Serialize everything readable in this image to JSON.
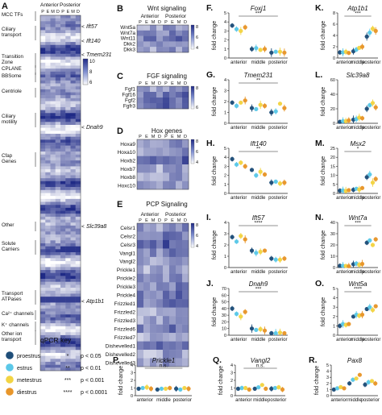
{
  "colors": {
    "proestrus": "#1f4e79",
    "estrus": "#5bc8e8",
    "metestrus": "#f2d443",
    "diestrus": "#e8962a",
    "heat_low": "#ffffff",
    "heat_high": "#1f2a86"
  },
  "stages": [
    "P",
    "E",
    "M",
    "D"
  ],
  "heatmap_A": {
    "letter": "A",
    "col_headers": [
      "Anterior",
      "Posterior"
    ],
    "row_labels": [
      "MCC TFs",
      "Ciliary\ntransport",
      "Transition\nZone",
      "CPLANE",
      "BBSome",
      "Centriole",
      "Ciliary\nmotility",
      "Cfap\nGenes",
      "Other",
      "Solute\nCarriers",
      "Transport\nATPases",
      "Ca²⁺ channels",
      "K⁺ channels",
      "Other ion\ntransport"
    ],
    "gene_callouts": [
      "Ift57",
      "Ift140",
      "Tmem231",
      "Dnah9",
      "Slc39a8",
      "Atp1b1"
    ],
    "scale_ticks": [
      "10",
      "8",
      "6"
    ]
  },
  "panels": {
    "B": {
      "title": "Wnt signaling",
      "cols": [
        "Anterior",
        "Posterior"
      ],
      "rows": [
        "Wnt5a",
        "Wnt7a",
        "Wnt11",
        "Dkk2",
        "Dkk3"
      ],
      "ticks": [
        "8",
        "6",
        "4"
      ]
    },
    "C": {
      "title": "FGF signaling",
      "rows": [
        "Fgf1",
        "Fgf16",
        "Fgf2",
        "Fgfr3"
      ],
      "ticks": [
        "8",
        "6"
      ]
    },
    "D": {
      "title": "Hox genes",
      "rows": [
        "Hoxa9",
        "Hoxa10",
        "Hoxb2",
        "Hoxb7",
        "Hoxb8",
        "Hoxc10"
      ],
      "ticks": [
        "8",
        "6",
        "4"
      ]
    },
    "E": {
      "title": "PCP Signaling",
      "cols": [
        "Anterior",
        "Posterior"
      ],
      "rows": [
        "Celsr1",
        "Celsr2",
        "Celsr3",
        "Vangl1",
        "Vangl2",
        "Prickle1",
        "Prickle2",
        "Prickle3",
        "Prickle4",
        "Frizzled1",
        "Frizzled2",
        "Frizzled3",
        "Frizzled6",
        "Frizzled7",
        "Dishevelled1",
        "Dishevelled2",
        "Dishevelled3"
      ],
      "ticks": [
        "8",
        "6",
        "4"
      ]
    }
  },
  "legend": {
    "title": "qPCR key",
    "items": [
      "proestrus",
      "estrus",
      "metestrus",
      "diestrus"
    ],
    "sig": [
      [
        "*",
        "p < 0.05"
      ],
      [
        "**",
        "p < 0.01"
      ],
      [
        "***",
        "p < 0.001"
      ],
      [
        "****",
        "p < 0.0001"
      ]
    ]
  },
  "chart_data": [
    {
      "type": "scatter",
      "letter": "F",
      "gene": "Foxj1",
      "ylabel": "fold change",
      "categories": [
        "anterior",
        "middle",
        "posterior"
      ],
      "ylim": [
        0,
        5
      ],
      "yticks": [
        0,
        1,
        2,
        3,
        4,
        5
      ],
      "sig": "***",
      "series": [
        {
          "name": "proestrus",
          "values": [
            3.6,
            1.0,
            0.6
          ]
        },
        {
          "name": "estrus",
          "values": [
            3.2,
            1.1,
            0.7
          ]
        },
        {
          "name": "metestrus",
          "values": [
            3.0,
            0.9,
            0.7
          ]
        },
        {
          "name": "diestrus",
          "values": [
            3.4,
            1.0,
            0.6
          ]
        }
      ]
    },
    {
      "type": "scatter",
      "letter": "K",
      "gene": "Atp1b1",
      "ylabel": "fold change",
      "categories": [
        "anterior",
        "middle",
        "posterior"
      ],
      "ylim": [
        0,
        8
      ],
      "yticks": [
        0,
        2,
        4,
        6,
        8
      ],
      "sig": "***",
      "series": [
        {
          "name": "proestrus",
          "values": [
            1.0,
            1.2,
            3.8
          ]
        },
        {
          "name": "estrus",
          "values": [
            1.0,
            1.5,
            4.5
          ]
        },
        {
          "name": "metestrus",
          "values": [
            1.1,
            1.8,
            5.2
          ]
        },
        {
          "name": "diestrus",
          "values": [
            0.9,
            2.0,
            4.8
          ]
        }
      ]
    },
    {
      "type": "scatter",
      "letter": "G",
      "gene": "Tmem231",
      "ylabel": "fold change",
      "categories": [
        "anterior",
        "middle",
        "posterior"
      ],
      "ylim": [
        0,
        4
      ],
      "yticks": [
        0,
        1,
        2,
        3,
        4
      ],
      "sig": "**",
      "series": [
        {
          "name": "proestrus",
          "values": [
            1.9,
            1.4,
            1.0
          ]
        },
        {
          "name": "estrus",
          "values": [
            1.6,
            1.3,
            1.1
          ]
        },
        {
          "name": "metestrus",
          "values": [
            1.9,
            1.7,
            1.8
          ]
        },
        {
          "name": "diestrus",
          "values": [
            2.1,
            1.6,
            1.4
          ]
        }
      ]
    },
    {
      "type": "scatter",
      "letter": "L",
      "gene": "Slc39a8",
      "ylabel": "fold change",
      "categories": [
        "anterior",
        "middle",
        "posterior"
      ],
      "ylim": [
        0,
        60
      ],
      "yticks": [
        0,
        20,
        40,
        60
      ],
      "sig": "",
      "series": [
        {
          "name": "proestrus",
          "values": [
            2,
            5,
            20
          ]
        },
        {
          "name": "estrus",
          "values": [
            3,
            6,
            25
          ]
        },
        {
          "name": "metestrus",
          "values": [
            3,
            8,
            28
          ]
        },
        {
          "name": "diestrus",
          "values": [
            4,
            7,
            22
          ]
        }
      ]
    },
    {
      "type": "scatter",
      "letter": "H",
      "gene": "Ift140",
      "ylabel": "fold change",
      "categories": [
        "anterior",
        "middle",
        "posterior"
      ],
      "ylim": [
        0,
        5
      ],
      "yticks": [
        0,
        1,
        2,
        3,
        4,
        5
      ],
      "sig": "**",
      "series": [
        {
          "name": "proestrus",
          "values": [
            3.8,
            2.6,
            1.2
          ]
        },
        {
          "name": "estrus",
          "values": [
            3.2,
            2.0,
            1.3
          ]
        },
        {
          "name": "metestrus",
          "values": [
            3.4,
            2.4,
            1.1
          ]
        },
        {
          "name": "diestrus",
          "values": [
            3.0,
            2.1,
            1.2
          ]
        }
      ]
    },
    {
      "type": "scatter",
      "letter": "M",
      "gene": "Msx2",
      "ylabel": "fold change",
      "categories": [
        "anterior",
        "middle",
        "posterior"
      ],
      "ylim": [
        0,
        25
      ],
      "yticks": [
        0,
        5,
        10,
        15,
        20,
        25
      ],
      "sig": "*",
      "series": [
        {
          "name": "proestrus",
          "values": [
            1.5,
            2.0,
            9.0
          ]
        },
        {
          "name": "estrus",
          "values": [
            1.6,
            2.6,
            10.5
          ]
        },
        {
          "name": "metestrus",
          "values": [
            1.4,
            2.2,
            6.0
          ]
        },
        {
          "name": "diestrus",
          "values": [
            1.8,
            3.0,
            8.0
          ]
        }
      ]
    },
    {
      "type": "scatter",
      "letter": "I",
      "gene": "Ift57",
      "ylabel": "fold change",
      "categories": [
        "anterior",
        "middle",
        "posterior"
      ],
      "ylim": [
        0,
        4
      ],
      "yticks": [
        0,
        1,
        2,
        3,
        4
      ],
      "sig": "****",
      "series": [
        {
          "name": "proestrus",
          "values": [
            2.7,
            1.5,
            0.8
          ]
        },
        {
          "name": "estrus",
          "values": [
            2.3,
            1.3,
            0.7
          ]
        },
        {
          "name": "metestrus",
          "values": [
            2.8,
            1.4,
            0.7
          ]
        },
        {
          "name": "diestrus",
          "values": [
            2.5,
            1.5,
            0.8
          ]
        }
      ]
    },
    {
      "type": "scatter",
      "letter": "N",
      "gene": "Wnt7a",
      "ylabel": "fold change",
      "categories": [
        "anterior",
        "middle",
        "posterior"
      ],
      "ylim": [
        0,
        40
      ],
      "yticks": [
        0,
        10,
        20,
        30,
        40
      ],
      "sig": "***",
      "series": [
        {
          "name": "proestrus",
          "values": [
            1.5,
            3.0,
            22.0
          ]
        },
        {
          "name": "estrus",
          "values": [
            1.6,
            3.5,
            24.0
          ]
        },
        {
          "name": "metestrus",
          "values": [
            1.4,
            2.5,
            20.0
          ]
        },
        {
          "name": "diestrus",
          "values": [
            1.2,
            3.2,
            25.0
          ]
        }
      ]
    },
    {
      "type": "scatter",
      "letter": "J",
      "gene": "Dnah9",
      "ylabel": "fold change",
      "categories": [
        "anterior",
        "middle",
        "posterior"
      ],
      "ylim": [
        0,
        70
      ],
      "yticks": [
        0,
        10,
        20,
        30,
        40,
        50,
        60,
        70
      ],
      "sig": "***",
      "series": [
        {
          "name": "proestrus",
          "values": [
            40,
            10,
            3
          ]
        },
        {
          "name": "estrus",
          "values": [
            32,
            8,
            3
          ]
        },
        {
          "name": "metestrus",
          "values": [
            28,
            9,
            4
          ]
        },
        {
          "name": "diestrus",
          "values": [
            35,
            7,
            3
          ]
        }
      ]
    },
    {
      "type": "scatter",
      "letter": "O",
      "gene": "Wnt5a",
      "ylabel": "fold change",
      "categories": [
        "anterior",
        "middle",
        "posterior"
      ],
      "ylim": [
        0,
        5
      ],
      "yticks": [
        0,
        1,
        2,
        3,
        4,
        5
      ],
      "sig": "****",
      "series": [
        {
          "name": "proestrus",
          "values": [
            1.0,
            2.0,
            2.8
          ]
        },
        {
          "name": "estrus",
          "values": [
            1.2,
            2.2,
            3.0
          ]
        },
        {
          "name": "metestrus",
          "values": [
            1.1,
            2.1,
            2.7
          ]
        },
        {
          "name": "diestrus",
          "values": [
            1.2,
            2.2,
            3.1
          ]
        }
      ]
    },
    {
      "type": "scatter",
      "letter": "P",
      "gene": "Prickle1",
      "ylabel": "fold change",
      "categories": [
        "anterior",
        "middle",
        "posterior"
      ],
      "ylim": [
        0,
        4
      ],
      "yticks": [
        0,
        1,
        2,
        3,
        4
      ],
      "sig": "n.s.",
      "series": [
        {
          "name": "proestrus",
          "values": [
            0.9,
            0.8,
            0.9
          ]
        },
        {
          "name": "estrus",
          "values": [
            1.0,
            0.9,
            0.8
          ]
        },
        {
          "name": "metestrus",
          "values": [
            1.1,
            0.9,
            1.0
          ]
        },
        {
          "name": "diestrus",
          "values": [
            0.9,
            1.0,
            0.9
          ]
        }
      ]
    },
    {
      "type": "scatter",
      "letter": "Q",
      "gene": "Vangl2",
      "ylabel": "fold change",
      "categories": [
        "anterior",
        "middle",
        "posterior"
      ],
      "ylim": [
        0,
        4
      ],
      "yticks": [
        0,
        1,
        2,
        3,
        4
      ],
      "sig": "n.s.",
      "series": [
        {
          "name": "proestrus",
          "values": [
            0.9,
            0.9,
            0.9
          ]
        },
        {
          "name": "estrus",
          "values": [
            1.0,
            1.1,
            1.0
          ]
        },
        {
          "name": "metestrus",
          "values": [
            1.0,
            1.4,
            1.1
          ]
        },
        {
          "name": "diestrus",
          "values": [
            0.8,
            0.9,
            0.8
          ]
        }
      ]
    },
    {
      "type": "scatter",
      "letter": "R",
      "gene": "Pax8",
      "ylabel": "fold change",
      "categories": [
        "anterior",
        "middle",
        "posterior"
      ],
      "ylim": [
        0,
        5
      ],
      "yticks": [
        0,
        1,
        2,
        3,
        4,
        5
      ],
      "sig": "",
      "series": [
        {
          "name": "proestrus",
          "values": [
            1.0,
            2.0,
            1.8
          ]
        },
        {
          "name": "estrus",
          "values": [
            1.2,
            2.6,
            2.2
          ]
        },
        {
          "name": "metestrus",
          "values": [
            1.4,
            2.8,
            2.4
          ]
        },
        {
          "name": "diestrus",
          "values": [
            1.2,
            3.4,
            2.0
          ]
        }
      ]
    }
  ]
}
